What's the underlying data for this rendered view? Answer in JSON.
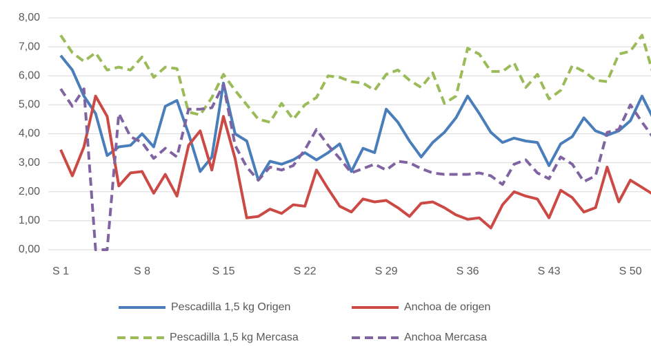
{
  "chart_data": {
    "type": "line",
    "categories": [
      "S 1",
      null,
      null,
      null,
      null,
      null,
      null,
      "S 8",
      null,
      null,
      null,
      null,
      null,
      null,
      "S 15",
      null,
      null,
      null,
      null,
      null,
      null,
      "S 22",
      null,
      null,
      null,
      null,
      null,
      null,
      "S 29",
      null,
      null,
      null,
      null,
      null,
      null,
      "S 36",
      null,
      null,
      null,
      null,
      null,
      null,
      "S 43",
      null,
      null,
      null,
      null,
      null,
      null,
      "S 50",
      null,
      null
    ],
    "series": [
      {
        "name": "Pescadilla 1,5 kg Origen",
        "color": "#4a7ebb",
        "dash": false,
        "values": [
          6.7,
          6.2,
          5.3,
          4.7,
          3.25,
          3.55,
          3.6,
          4.0,
          3.55,
          4.95,
          5.15,
          4.0,
          2.7,
          3.2,
          5.75,
          4.0,
          3.75,
          2.4,
          3.05,
          2.95,
          3.1,
          3.35,
          3.1,
          3.35,
          3.65,
          2.7,
          3.5,
          3.35,
          4.85,
          4.4,
          3.75,
          3.2,
          3.7,
          4.05,
          4.55,
          5.3,
          4.7,
          4.05,
          3.7,
          3.85,
          3.75,
          3.7,
          2.9,
          3.65,
          3.9,
          4.55,
          4.1,
          3.95,
          4.1,
          4.45,
          5.3,
          4.5
        ]
      },
      {
        "name": "Anchoa de origen",
        "color": "#cc4a46",
        "dash": false,
        "values": [
          3.45,
          2.55,
          3.55,
          5.3,
          4.6,
          2.2,
          2.65,
          2.7,
          1.95,
          2.6,
          1.85,
          3.6,
          4.1,
          2.75,
          4.6,
          3.15,
          1.1,
          1.15,
          1.4,
          1.25,
          1.55,
          1.5,
          2.75,
          2.1,
          1.5,
          1.3,
          1.75,
          1.65,
          1.7,
          1.45,
          1.15,
          1.6,
          1.65,
          1.45,
          1.2,
          1.05,
          1.1,
          0.75,
          1.55,
          2.0,
          1.85,
          1.75,
          1.1,
          2.05,
          1.8,
          1.3,
          1.45,
          2.85,
          1.65,
          2.4,
          2.15,
          1.9
        ]
      },
      {
        "name": "Pescadilla 1,5 kg Mercasa",
        "color": "#9bbb59",
        "dash": true,
        "values": [
          7.4,
          6.8,
          6.5,
          6.8,
          6.2,
          6.3,
          6.2,
          6.65,
          5.95,
          6.3,
          6.25,
          4.75,
          4.65,
          5.25,
          6.05,
          5.5,
          5.0,
          4.5,
          4.4,
          5.05,
          4.5,
          5.0,
          5.25,
          6.0,
          5.95,
          5.8,
          5.75,
          5.5,
          6.05,
          6.2,
          5.85,
          5.6,
          6.1,
          5.05,
          5.3,
          6.95,
          6.75,
          6.15,
          6.15,
          6.45,
          5.6,
          6.05,
          5.2,
          5.5,
          6.35,
          6.15,
          5.85,
          5.8,
          6.75,
          6.85,
          7.4,
          6.0
        ]
      },
      {
        "name": "Anchoa Mercasa",
        "color": "#8064a2",
        "dash": true,
        "values": [
          5.55,
          4.95,
          5.55,
          0.0,
          0.0,
          4.7,
          3.9,
          3.7,
          3.15,
          3.5,
          3.2,
          4.85,
          4.85,
          4.9,
          5.7,
          3.6,
          2.85,
          2.4,
          2.85,
          2.75,
          2.9,
          3.45,
          4.15,
          3.6,
          3.15,
          2.65,
          2.8,
          2.95,
          2.75,
          3.05,
          3.0,
          2.8,
          2.65,
          2.6,
          2.6,
          2.6,
          2.65,
          2.55,
          2.25,
          2.95,
          3.1,
          2.65,
          2.45,
          3.2,
          2.95,
          2.35,
          2.55,
          4.05,
          4.15,
          5.0,
          4.4,
          3.85
        ]
      }
    ],
    "ylim": [
      0,
      8
    ],
    "yticks": [
      {
        "value": 0,
        "label": "0,00"
      },
      {
        "value": 1,
        "label": "1,00"
      },
      {
        "value": 2,
        "label": "2,00"
      },
      {
        "value": 3,
        "label": "3,00"
      },
      {
        "value": 4,
        "label": "4,00"
      },
      {
        "value": 5,
        "label": "5,00"
      },
      {
        "value": 6,
        "label": "6,00"
      },
      {
        "value": 7,
        "label": "7,00"
      },
      {
        "value": 8,
        "label": "8,00"
      }
    ],
    "grid": true,
    "legend": "bottom"
  }
}
